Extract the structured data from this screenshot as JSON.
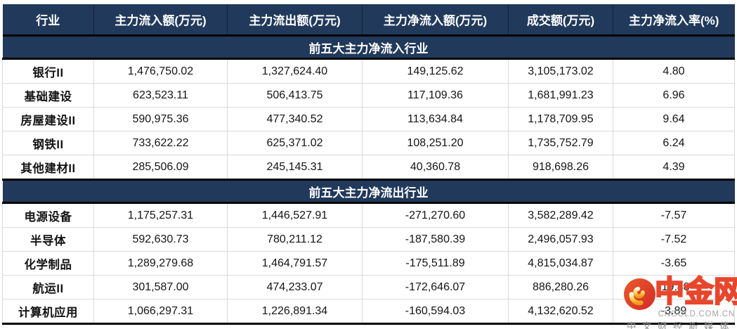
{
  "table": {
    "columns": [
      "行业",
      "主力流入额(万元)",
      "主力流出额(万元)",
      "主力净流入额(万元)",
      "成交额(万元)",
      "主力净流入率(%)"
    ],
    "sections": [
      {
        "title": "前五大主力净流入行业",
        "rows": [
          {
            "industry": "银行II",
            "inflow": "1,476,750.02",
            "outflow": "1,327,624.40",
            "net_inflow": "149,125.62",
            "turnover": "3,105,173.02",
            "net_rate": "4.80"
          },
          {
            "industry": "基础建设",
            "inflow": "623,523.11",
            "outflow": "506,413.75",
            "net_inflow": "117,109.36",
            "turnover": "1,681,991.23",
            "net_rate": "6.96"
          },
          {
            "industry": "房屋建设II",
            "inflow": "590,975.36",
            "outflow": "477,340.52",
            "net_inflow": "113,634.84",
            "turnover": "1,178,709.95",
            "net_rate": "9.64"
          },
          {
            "industry": "钢铁II",
            "inflow": "733,622.22",
            "outflow": "625,371.02",
            "net_inflow": "108,251.20",
            "turnover": "1,735,752.79",
            "net_rate": "6.24"
          },
          {
            "industry": "其他建材II",
            "inflow": "285,506.09",
            "outflow": "245,145.31",
            "net_inflow": "40,360.78",
            "turnover": "918,698.26",
            "net_rate": "4.39"
          }
        ]
      },
      {
        "title": "前五大主力净流出行业",
        "rows": [
          {
            "industry": "电源设备",
            "inflow": "1,175,257.31",
            "outflow": "1,446,527.91",
            "net_inflow": "-271,270.60",
            "turnover": "3,582,289.42",
            "net_rate": "-7.57"
          },
          {
            "industry": "半导体",
            "inflow": "592,630.73",
            "outflow": "780,211.12",
            "net_inflow": "-187,580.39",
            "turnover": "2,496,057.93",
            "net_rate": "-7.52"
          },
          {
            "industry": "化学制品",
            "inflow": "1,289,279.68",
            "outflow": "1,464,791.57",
            "net_inflow": "-175,511.89",
            "turnover": "4,815,034.87",
            "net_rate": "-3.65"
          },
          {
            "industry": "航运II",
            "inflow": "301,587.00",
            "outflow": "474,233.07",
            "net_inflow": "-172,646.07",
            "turnover": "886,280.26",
            "net_rate": "-19.48"
          },
          {
            "industry": "计算机应用",
            "inflow": "1,066,297.31",
            "outflow": "1,226,891.34",
            "net_inflow": "-160,594.03",
            "turnover": "4,132,620.52",
            "net_rate": "-3.89"
          }
        ]
      }
    ]
  },
  "watermark": {
    "brand": "中金网",
    "domain": "CNGOLD.COM.CN",
    "tagline": "中文财经新媒体",
    "logo_icon": "cngold-swirl-icon"
  },
  "colors": {
    "header_bg": "#21395B",
    "header_text": "#ffffff",
    "section_divider": "#000000",
    "grid_line": "#d9d9d9",
    "body_text": "#141414",
    "brand_red": "#e8462c",
    "brand_orange": "#f5a623",
    "watermark_gray": "#8f8f8f"
  }
}
